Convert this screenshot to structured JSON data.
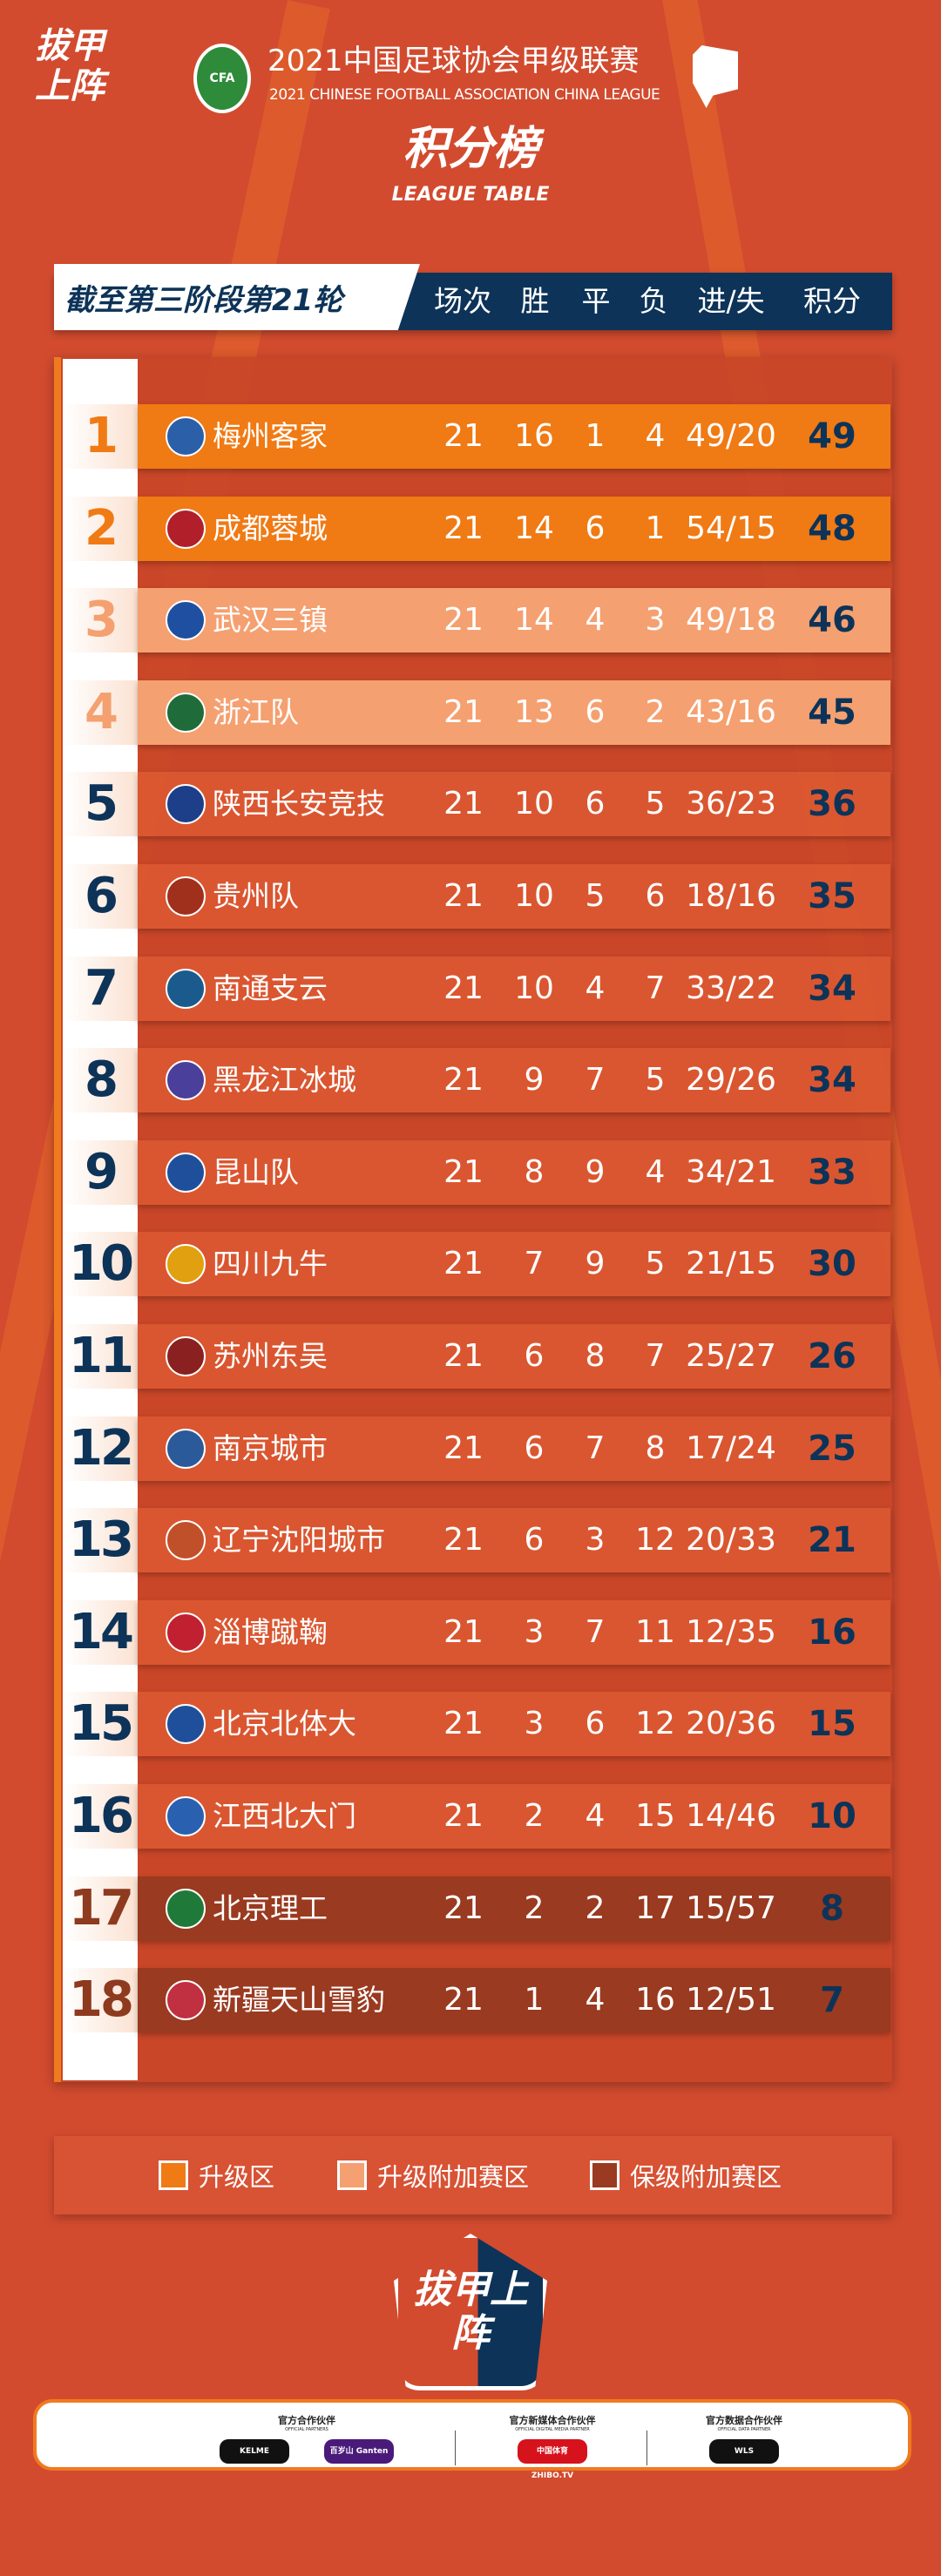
{
  "header": {
    "slogan_logo": "拔甲上阵",
    "cfa_logo": "CFA",
    "title_cn": "2021中国足球协会甲级联赛",
    "title_en": "2021 CHINESE FOOTBALL ASSOCIATION CHINA LEAGUE",
    "title": "积分榜",
    "subtitle": "LEAGUE TABLE"
  },
  "table_header": {
    "round": "截至第三阶段第21轮",
    "cols": [
      "场次",
      "胜",
      "平",
      "负",
      "进/失",
      "积分"
    ]
  },
  "colors": {
    "promotion": "#f07a14",
    "promotion_playoff": "#f5a070",
    "relegation_playoff": "#9a3a20",
    "points": "#0d3358",
    "background": "#d24b2f"
  },
  "rows": [
    {
      "rank": "1",
      "team": "梅州客家",
      "p": "21",
      "w": "16",
      "d": "1",
      "l": "4",
      "gd": "49/20",
      "pts": "49",
      "zone": "promotion"
    },
    {
      "rank": "2",
      "team": "成都蓉城",
      "p": "21",
      "w": "14",
      "d": "6",
      "l": "1",
      "gd": "54/15",
      "pts": "48",
      "zone": "promotion"
    },
    {
      "rank": "3",
      "team": "武汉三镇",
      "p": "21",
      "w": "14",
      "d": "4",
      "l": "3",
      "gd": "49/18",
      "pts": "46",
      "zone": "promotion_playoff"
    },
    {
      "rank": "4",
      "team": "浙江队",
      "p": "21",
      "w": "13",
      "d": "6",
      "l": "2",
      "gd": "43/16",
      "pts": "45",
      "zone": "promotion_playoff"
    },
    {
      "rank": "5",
      "team": "陕西长安竞技",
      "p": "21",
      "w": "10",
      "d": "6",
      "l": "5",
      "gd": "36/23",
      "pts": "36",
      "zone": "none"
    },
    {
      "rank": "6",
      "team": "贵州队",
      "p": "21",
      "w": "10",
      "d": "5",
      "l": "6",
      "gd": "18/16",
      "pts": "35",
      "zone": "none"
    },
    {
      "rank": "7",
      "team": "南通支云",
      "p": "21",
      "w": "10",
      "d": "4",
      "l": "7",
      "gd": "33/22",
      "pts": "34",
      "zone": "none"
    },
    {
      "rank": "8",
      "team": "黑龙江冰城",
      "p": "21",
      "w": "9",
      "d": "7",
      "l": "5",
      "gd": "29/26",
      "pts": "34",
      "zone": "none"
    },
    {
      "rank": "9",
      "team": "昆山队",
      "p": "21",
      "w": "8",
      "d": "9",
      "l": "4",
      "gd": "34/21",
      "pts": "33",
      "zone": "none"
    },
    {
      "rank": "10",
      "team": "四川九牛",
      "p": "21",
      "w": "7",
      "d": "9",
      "l": "5",
      "gd": "21/15",
      "pts": "30",
      "zone": "none"
    },
    {
      "rank": "11",
      "team": "苏州东吴",
      "p": "21",
      "w": "6",
      "d": "8",
      "l": "7",
      "gd": "25/27",
      "pts": "26",
      "zone": "none"
    },
    {
      "rank": "12",
      "team": "南京城市",
      "p": "21",
      "w": "6",
      "d": "7",
      "l": "8",
      "gd": "17/24",
      "pts": "25",
      "zone": "none"
    },
    {
      "rank": "13",
      "team": "辽宁沈阳城市",
      "p": "21",
      "w": "6",
      "d": "3",
      "l": "12",
      "gd": "20/33",
      "pts": "21",
      "zone": "none"
    },
    {
      "rank": "14",
      "team": "淄博蹴鞠",
      "p": "21",
      "w": "3",
      "d": "7",
      "l": "11",
      "gd": "12/35",
      "pts": "16",
      "zone": "none"
    },
    {
      "rank": "15",
      "team": "北京北体大",
      "p": "21",
      "w": "3",
      "d": "6",
      "l": "12",
      "gd": "20/36",
      "pts": "15",
      "zone": "none"
    },
    {
      "rank": "16",
      "team": "江西北大门",
      "p": "21",
      "w": "2",
      "d": "4",
      "l": "15",
      "gd": "14/46",
      "pts": "10",
      "zone": "none"
    },
    {
      "rank": "17",
      "team": "北京理工",
      "p": "21",
      "w": "2",
      "d": "2",
      "l": "17",
      "gd": "15/57",
      "pts": "8",
      "zone": "relegation_playoff"
    },
    {
      "rank": "18",
      "team": "新疆天山雪豹",
      "p": "21",
      "w": "1",
      "d": "4",
      "l": "16",
      "gd": "12/51",
      "pts": "7",
      "zone": "relegation_playoff"
    }
  ],
  "legend": [
    {
      "label": "升级区",
      "zone": "promotion"
    },
    {
      "label": "升级附加赛区",
      "zone": "promotion_playoff"
    },
    {
      "label": "保级附加赛区",
      "zone": "relegation_playoff"
    }
  ],
  "sponsors": [
    {
      "title": "官方合作伙伴",
      "en": "OFFICIAL PARTNERS",
      "logos": [
        "KELME",
        "百岁山 Ganten"
      ]
    },
    {
      "title": "官方新媒体合作伙伴",
      "en": "OFFICIAL DIGITAL MEDIA PARTNER",
      "logos": [
        "中国体育 ZHIBO.TV"
      ]
    },
    {
      "title": "官方数据合作伙伴",
      "en": "OFFICIAL DATA PARTNER",
      "logos": [
        "WLS"
      ]
    }
  ]
}
